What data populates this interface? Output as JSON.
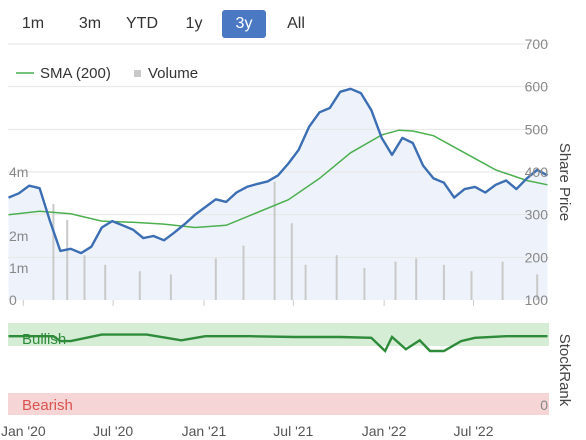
{
  "range_tabs": [
    {
      "label": "1m",
      "active": false
    },
    {
      "label": "3m",
      "active": false
    },
    {
      "label": "YTD",
      "active": false
    },
    {
      "label": "1y",
      "active": false
    },
    {
      "label": "3y",
      "active": true
    },
    {
      "label": "All",
      "active": false
    }
  ],
  "legend": {
    "sma_label": "SMA (200)",
    "volume_label": "Volume"
  },
  "colors": {
    "price": "#3c6eb4",
    "sma": "#4caf50",
    "volume": "#c9c9c9",
    "price_fill": "#eef3fb",
    "bullish_band": "#d5ecd5",
    "bullish_line": "#2e8b3a",
    "bearish_band": "#f5d5d5",
    "bearish_text": "#d9534f",
    "active_tab": "#4a78c2"
  },
  "axes": {
    "right_title": "Share Price",
    "rank_title": "StockRank",
    "bullish_label": "Bullish",
    "bearish_label": "Bearish",
    "bearish_value": "0"
  },
  "chart_data": {
    "type": "line",
    "x_range": [
      "2019-12-01",
      "2022-12-01"
    ],
    "x_ticks": [
      {
        "date": "2020-01-01",
        "label": "Jan '20"
      },
      {
        "date": "2020-07-01",
        "label": "Jul '20"
      },
      {
        "date": "2021-01-01",
        "label": "Jan '21"
      },
      {
        "date": "2021-07-01",
        "label": "Jul '21"
      },
      {
        "date": "2022-01-01",
        "label": "Jan '22"
      },
      {
        "date": "2022-07-01",
        "label": "Jul '22"
      }
    ],
    "price_axis": {
      "ylim": [
        100,
        700
      ],
      "ticks": [
        100,
        200,
        300,
        400,
        500,
        600,
        700
      ]
    },
    "volume_axis": {
      "ylim": [
        0,
        5000000
      ],
      "ticks": [
        {
          "value": 0,
          "label": "0"
        },
        {
          "value": 1000000,
          "label": "1m"
        },
        {
          "value": 2000000,
          "label": "2m"
        },
        {
          "value": 4000000,
          "label": "4m"
        }
      ]
    },
    "series": [
      {
        "name": "Share Price",
        "dates": [
          "2019-12-02",
          "2019-12-23",
          "2020-01-13",
          "2020-02-03",
          "2020-02-24",
          "2020-03-16",
          "2020-04-06",
          "2020-04-27",
          "2020-05-18",
          "2020-06-08",
          "2020-06-29",
          "2020-07-20",
          "2020-08-10",
          "2020-08-31",
          "2020-09-21",
          "2020-10-12",
          "2020-11-02",
          "2020-11-23",
          "2020-12-14",
          "2021-01-04",
          "2021-01-25",
          "2021-02-15",
          "2021-03-08",
          "2021-03-29",
          "2021-04-19",
          "2021-05-10",
          "2021-05-31",
          "2021-06-21",
          "2021-07-12",
          "2021-08-02",
          "2021-08-23",
          "2021-09-13",
          "2021-10-04",
          "2021-10-25",
          "2021-11-15",
          "2021-12-06",
          "2021-12-27",
          "2022-01-17",
          "2022-02-07",
          "2022-02-28",
          "2022-03-21",
          "2022-04-11",
          "2022-05-02",
          "2022-05-23",
          "2022-06-13",
          "2022-07-04",
          "2022-07-25",
          "2022-08-15",
          "2022-09-05",
          "2022-09-26",
          "2022-10-17",
          "2022-11-07",
          "2022-11-28"
        ],
        "values": [
          340,
          350,
          368,
          362,
          285,
          215,
          220,
          210,
          225,
          270,
          285,
          275,
          265,
          245,
          250,
          240,
          258,
          278,
          300,
          318,
          336,
          330,
          352,
          365,
          372,
          378,
          392,
          420,
          452,
          506,
          540,
          550,
          588,
          595,
          585,
          545,
          480,
          440,
          480,
          468,
          415,
          385,
          375,
          340,
          360,
          365,
          352,
          370,
          380,
          360,
          385,
          405,
          392
        ]
      },
      {
        "name": "SMA (200)",
        "dates": [
          "2019-12-02",
          "2020-02-03",
          "2020-04-06",
          "2020-06-08",
          "2020-08-10",
          "2020-10-12",
          "2020-12-14",
          "2021-02-15",
          "2021-04-19",
          "2021-06-21",
          "2021-08-23",
          "2021-10-25",
          "2021-12-27",
          "2022-01-31",
          "2022-02-28",
          "2022-04-11",
          "2022-06-13",
          "2022-08-15",
          "2022-10-17",
          "2022-11-28"
        ],
        "values": [
          300,
          308,
          302,
          285,
          282,
          278,
          270,
          275,
          305,
          335,
          385,
          445,
          487,
          498,
          496,
          485,
          445,
          405,
          380,
          370
        ]
      },
      {
        "name": "Volume",
        "dates": [
          "2020-03-02",
          "2020-03-30",
          "2020-05-04",
          "2020-06-15",
          "2020-08-24",
          "2020-10-26",
          "2021-01-25",
          "2021-03-22",
          "2021-05-24",
          "2021-06-28",
          "2021-07-26",
          "2021-09-27",
          "2021-11-22",
          "2022-01-24",
          "2022-03-07",
          "2022-05-02",
          "2022-06-27",
          "2022-08-29",
          "2022-11-07"
        ],
        "values": [
          3000000,
          2500000,
          1400000,
          1100000,
          900000,
          800000,
          1300000,
          1700000,
          3700000,
          2400000,
          1100000,
          1400000,
          1000000,
          1200000,
          1300000,
          1100000,
          900000,
          1200000,
          800000
        ]
      },
      {
        "name": "StockRank",
        "dates": [
          "2019-12-02",
          "2020-03-02",
          "2020-03-16",
          "2020-04-06",
          "2020-06-08",
          "2020-09-07",
          "2020-11-16",
          "2021-01-04",
          "2021-04-05",
          "2021-07-05",
          "2021-10-04",
          "2021-12-06",
          "2022-01-03",
          "2022-01-17",
          "2022-02-14",
          "2022-03-14",
          "2022-04-04",
          "2022-05-02",
          "2022-06-06",
          "2022-07-04",
          "2022-09-05",
          "2022-11-28"
        ],
        "values": [
          90,
          90,
          84,
          84,
          92,
          92,
          85,
          90,
          90,
          89,
          89,
          88,
          72,
          89,
          74,
          85,
          72,
          72,
          84,
          88,
          90,
          90
        ]
      }
    ]
  }
}
